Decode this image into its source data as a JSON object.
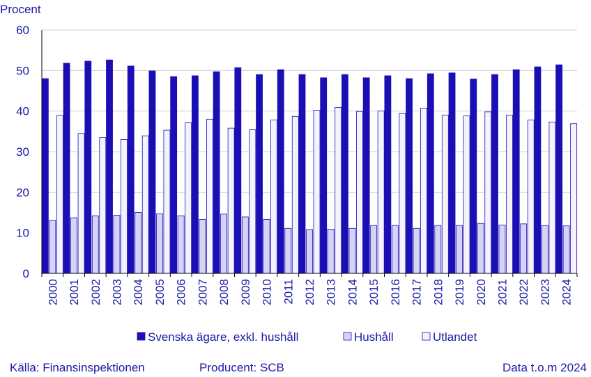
{
  "chart_data": {
    "type": "bar",
    "title": "",
    "xlabel": "",
    "ylabel": "Procent",
    "ylim": [
      0,
      60
    ],
    "yticks": [
      0,
      10,
      20,
      30,
      40,
      50,
      60
    ],
    "grid": true,
    "legend_position": "bottom",
    "categories": [
      "2000",
      "2001",
      "2002",
      "2003",
      "2004",
      "2005",
      "2006",
      "2007",
      "2008",
      "2009",
      "2010",
      "2011",
      "2012",
      "2013",
      "2014",
      "2015",
      "2016",
      "2017",
      "2018",
      "2019",
      "2020",
      "2021",
      "2022",
      "2023",
      "2024"
    ],
    "series": [
      {
        "name": "Svenska ägare, exkl. hushåll",
        "color": "#1a0fb4",
        "values": [
          48.0,
          51.8,
          52.3,
          52.6,
          51.1,
          49.9,
          48.5,
          48.7,
          49.7,
          50.7,
          49.0,
          50.2,
          49.0,
          48.2,
          49.0,
          48.2,
          48.7,
          48.0,
          49.2,
          49.4,
          47.9,
          49.0,
          50.2,
          50.9,
          51.4
        ]
      },
      {
        "name": "Hushåll",
        "color": "#d6d3f5",
        "values": [
          13.1,
          13.7,
          14.2,
          14.3,
          15.0,
          14.7,
          14.2,
          13.3,
          14.6,
          13.9,
          13.3,
          11.1,
          10.8,
          10.9,
          11.1,
          11.8,
          11.8,
          11.1,
          11.8,
          11.8,
          12.3,
          11.9,
          12.2,
          11.8,
          11.7
        ]
      },
      {
        "name": "Utlandet",
        "color": "#f4f3fc",
        "values": [
          38.9,
          34.5,
          33.5,
          33.0,
          33.9,
          35.3,
          37.1,
          38.0,
          35.8,
          35.4,
          37.8,
          38.7,
          40.2,
          40.9,
          39.9,
          40.0,
          39.4,
          40.7,
          39.0,
          38.8,
          39.8,
          39.0,
          37.8,
          37.3,
          36.9
        ]
      }
    ]
  },
  "footer": {
    "source": "Källa: Finansinspektionen",
    "producer": "Producent: SCB",
    "data_note": "Data t.o.m 2024"
  }
}
